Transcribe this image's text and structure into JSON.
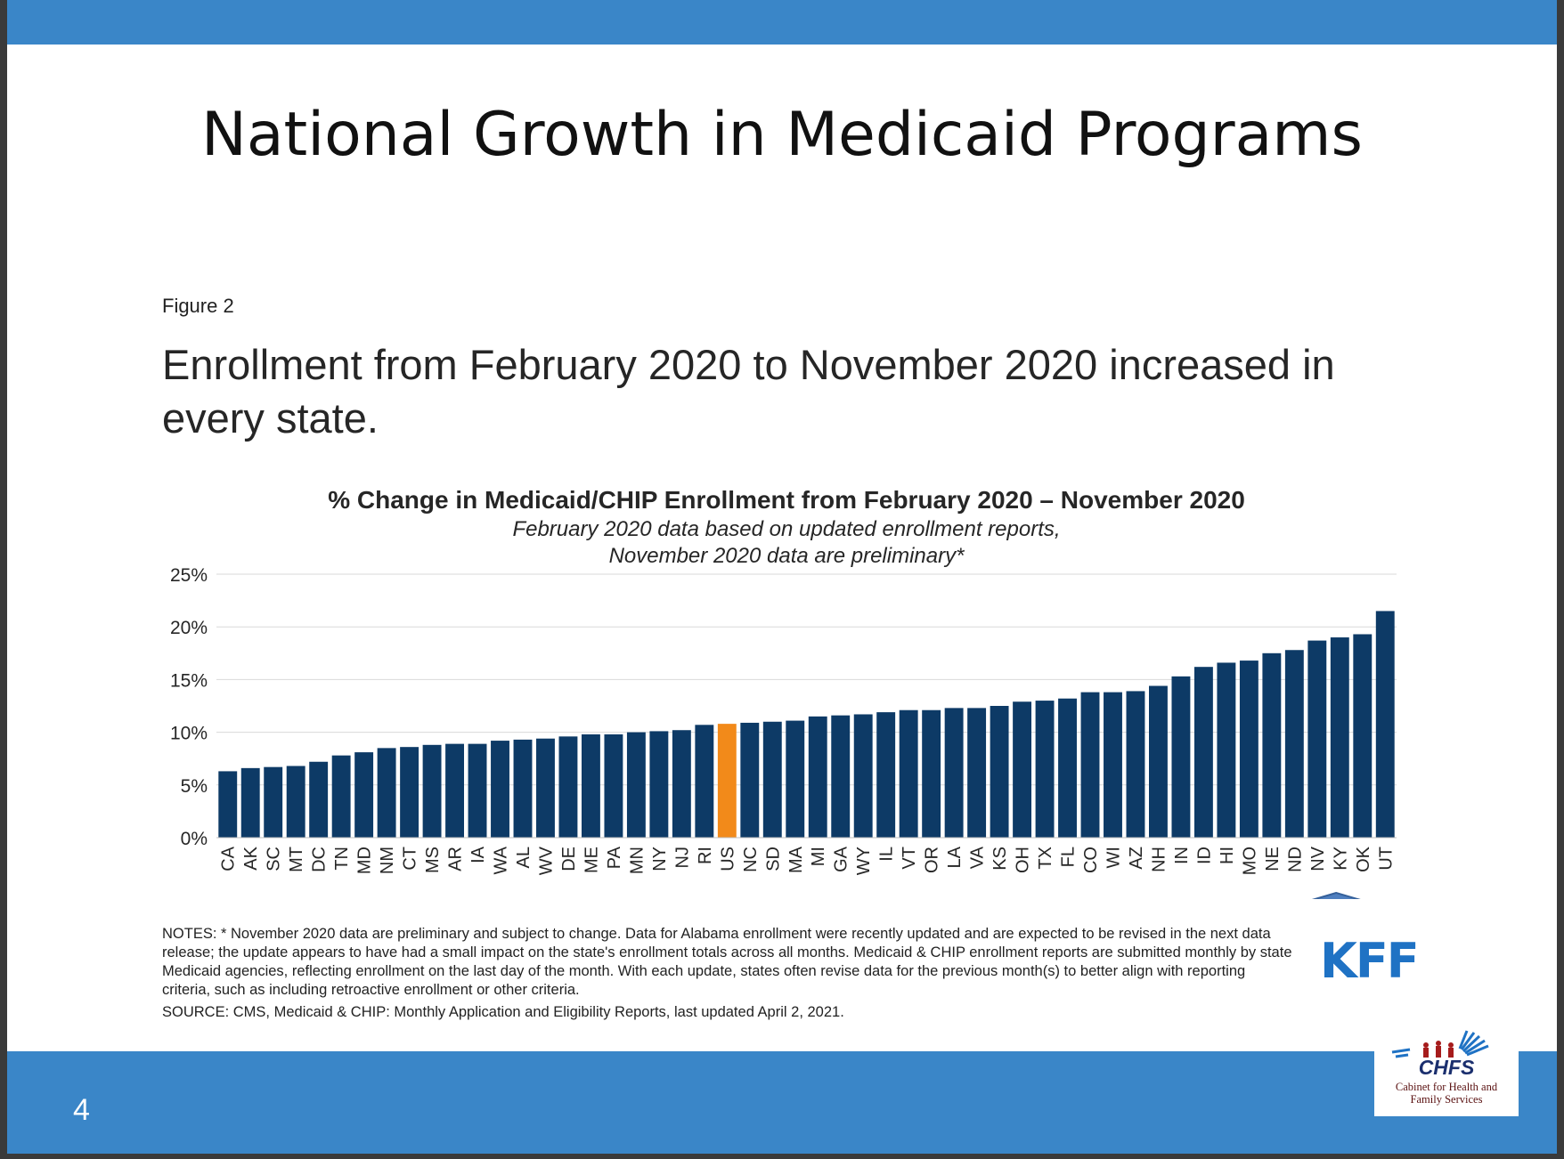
{
  "slide": {
    "title": "National Growth in Medicaid Programs",
    "page_number": "4",
    "colors": {
      "bars": "#3a86c8",
      "background": "#ffffff"
    }
  },
  "figure": {
    "label": "Figure 2",
    "headline": "Enrollment from February 2020 to November 2020 increased in every state.",
    "notes": "NOTES: * November 2020 data are preliminary and subject to change. Data for Alabama enrollment were recently updated and are expected to be revised in the next data release; the update appears to have had a small impact on the state's enrollment totals across all months. Medicaid & CHIP enrollment reports are submitted monthly by state Medicaid agencies, reflecting enrollment on the last day of the month. With each update, states often revise data for the previous month(s) to better align with reporting criteria, such as including retroactive enrollment or other criteria.",
    "source": "SOURCE: CMS, Medicaid & CHIP: Monthly Application and Eligibility Reports, last updated April 2, 2021.",
    "kff_logo": "KFF",
    "arrow_icon": "up-arrow-icon pointing at KY"
  },
  "chfs_logo": {
    "name": "CHFS",
    "subtitle_line1": "Cabinet for Health and",
    "subtitle_line2": "Family Services"
  },
  "chart_data": {
    "type": "bar",
    "title": "% Change in Medicaid/CHIP Enrollment from February 2020 – November 2020",
    "subtitle_line1": "February 2020 data based on updated enrollment reports,",
    "subtitle_line2": "November 2020 data are preliminary*",
    "xlabel": "",
    "ylabel": "",
    "ylim": [
      0,
      25
    ],
    "yticks": [
      0,
      5,
      10,
      15,
      20,
      25
    ],
    "ytick_labels": [
      "0%",
      "5%",
      "10%",
      "15%",
      "20%",
      "25%"
    ],
    "grid": true,
    "bar_color": "#0d3a66",
    "highlight_color": "#f28a1a",
    "highlight_category": "US",
    "categories": [
      "CA",
      "AK",
      "SC",
      "MT",
      "DC",
      "TN",
      "MD",
      "NM",
      "CT",
      "MS",
      "AR",
      "IA",
      "WA",
      "AL",
      "WV",
      "DE",
      "ME",
      "PA",
      "MN",
      "NY",
      "NJ",
      "RI",
      "US",
      "NC",
      "SD",
      "MA",
      "MI",
      "GA",
      "WY",
      "IL",
      "VT",
      "OR",
      "LA",
      "VA",
      "KS",
      "OH",
      "TX",
      "FL",
      "CO",
      "WI",
      "AZ",
      "NH",
      "IN",
      "ID",
      "HI",
      "MO",
      "NE",
      "ND",
      "NV",
      "KY",
      "OK",
      "UT"
    ],
    "values": [
      6.3,
      6.6,
      6.7,
      6.8,
      7.2,
      7.8,
      8.1,
      8.5,
      8.6,
      8.8,
      8.9,
      8.9,
      9.2,
      9.3,
      9.4,
      9.6,
      9.8,
      9.8,
      10.0,
      10.1,
      10.2,
      10.7,
      10.8,
      10.9,
      11.0,
      11.1,
      11.5,
      11.6,
      11.7,
      11.9,
      12.1,
      12.1,
      12.3,
      12.3,
      12.5,
      12.9,
      13.0,
      13.2,
      13.8,
      13.8,
      13.9,
      14.4,
      15.3,
      16.2,
      16.6,
      16.8,
      17.5,
      17.8,
      18.7,
      19.0,
      19.3,
      21.5
    ]
  }
}
